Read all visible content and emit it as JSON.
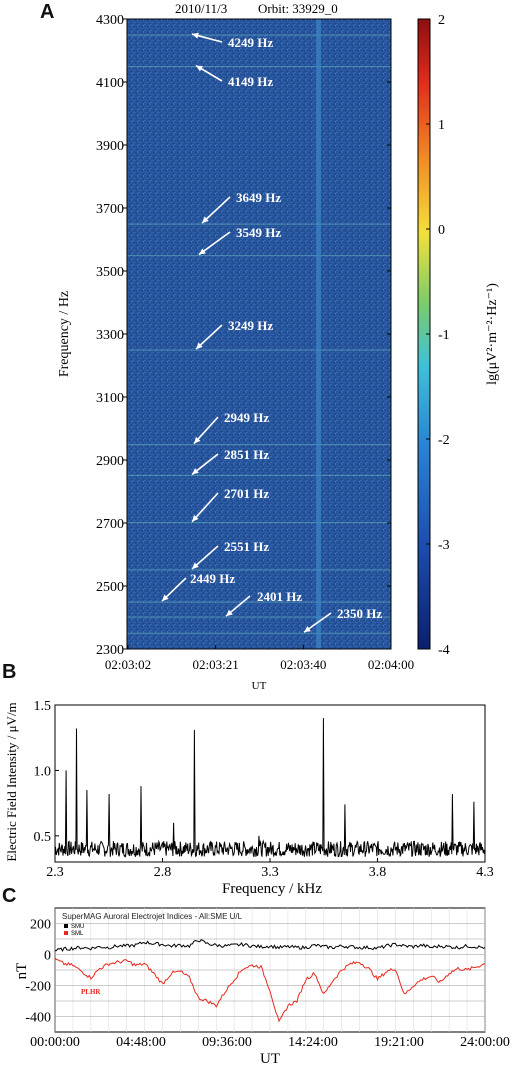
{
  "panel_labels": {
    "a": "A",
    "b": "B",
    "c": "C"
  },
  "chart_data": [
    {
      "type": "heatmap",
      "header_date": "2010/11/3",
      "header_orbit": "Orbit: 33929_0",
      "xlabel": "UT",
      "ylabel": "Frequency / Hz",
      "colorbar_label": "lg(μV²·m⁻²·Hz⁻¹)",
      "x_ticks": [
        "02:03:02",
        "02:03:21",
        "02:03:40",
        "02:04:00"
      ],
      "y_ticks": [
        2300,
        2500,
        2700,
        2900,
        3100,
        3300,
        3500,
        3700,
        3900,
        4100,
        4300
      ],
      "ylim": [
        2300,
        4300
      ],
      "xlim_seconds_after_020302": [
        0,
        58
      ],
      "colorbar_ticks": [
        2,
        1,
        0,
        -1,
        -2,
        -3,
        -4
      ],
      "colorbar_range": [
        -4,
        2
      ],
      "vertical_feature_time": "02:03:41",
      "line_frequencies_hz": [
        4249,
        4149,
        3649,
        3549,
        3249,
        2949,
        2851,
        2701,
        2551,
        2449,
        2401,
        2350
      ],
      "annotations": [
        {
          "label": "4249 Hz",
          "freq": 4249
        },
        {
          "label": "4149 Hz",
          "freq": 4149
        },
        {
          "label": "3649 Hz",
          "freq": 3649
        },
        {
          "label": "3549 Hz",
          "freq": 3549
        },
        {
          "label": "3249 Hz",
          "freq": 3249
        },
        {
          "label": "2949 Hz",
          "freq": 2949
        },
        {
          "label": "2851 Hz",
          "freq": 2851
        },
        {
          "label": "2701 Hz",
          "freq": 2701
        },
        {
          "label": "2551 Hz",
          "freq": 2551
        },
        {
          "label": "2449 Hz",
          "freq": 2449
        },
        {
          "label": "2401 Hz",
          "freq": 2401
        },
        {
          "label": "2350 Hz",
          "freq": 2350
        }
      ]
    },
    {
      "type": "line",
      "xlabel": "Frequency / kHz",
      "ylabel": "Electric Field Intensity / μV/m",
      "xlim": [
        2.3,
        4.3
      ],
      "ylim": [
        0.3,
        1.5
      ],
      "x_ticks": [
        "2.3",
        "2.8",
        "3.3",
        "3.8",
        "4.3"
      ],
      "y_ticks": [
        "0.5",
        "1.0",
        "1.5"
      ],
      "baseline": 0.4,
      "peaks": [
        {
          "x": 2.35,
          "y": 1.0
        },
        {
          "x": 2.401,
          "y": 1.32
        },
        {
          "x": 2.449,
          "y": 0.85
        },
        {
          "x": 2.551,
          "y": 0.82
        },
        {
          "x": 2.701,
          "y": 0.88
        },
        {
          "x": 2.851,
          "y": 0.6
        },
        {
          "x": 2.949,
          "y": 1.31
        },
        {
          "x": 3.249,
          "y": 0.5
        },
        {
          "x": 3.549,
          "y": 1.4
        },
        {
          "x": 3.649,
          "y": 0.74
        },
        {
          "x": 4.149,
          "y": 0.82
        },
        {
          "x": 4.249,
          "y": 0.76
        }
      ]
    },
    {
      "type": "line",
      "title": "SuperMAG Auroral Electrojet Indices - All:SME U/L",
      "xlabel": "UT",
      "ylabel": "nT",
      "ylim": [
        -500,
        300
      ],
      "xlim_hours": [
        0,
        24
      ],
      "x_ticks": [
        "00:00:00",
        "04:48:00",
        "09:36:00",
        "14:24:00",
        "19:21:00",
        "24:00:00"
      ],
      "y_ticks": [
        "200",
        "0",
        "-200",
        "-400"
      ],
      "annotation": "PLHR",
      "series": [
        {
          "name": "SMU",
          "color": "#000000",
          "x": [
            0,
            0.5,
            1,
            1.5,
            2,
            2.5,
            3,
            3.5,
            4,
            4.5,
            5,
            5.5,
            6,
            6.5,
            7,
            7.5,
            8,
            8.5,
            9,
            9.5,
            10,
            10.5,
            11,
            11.5,
            12,
            12.5,
            13,
            13.5,
            14,
            14.5,
            15,
            15.5,
            16,
            16.5,
            17,
            17.5,
            18,
            18.5,
            19,
            19.5,
            20,
            20.5,
            21,
            21.5,
            22,
            22.5,
            23,
            23.5,
            24
          ],
          "y": [
            25,
            35,
            40,
            45,
            40,
            50,
            45,
            55,
            55,
            60,
            80,
            70,
            65,
            55,
            60,
            55,
            95,
            70,
            60,
            55,
            60,
            65,
            55,
            50,
            55,
            45,
            50,
            45,
            45,
            60,
            50,
            45,
            55,
            50,
            45,
            45,
            40,
            55,
            65,
            55,
            50,
            60,
            45,
            55,
            50,
            45,
            55,
            50,
            45
          ]
        },
        {
          "name": "SML",
          "color": "#e8281e",
          "x": [
            0,
            0.5,
            1,
            1.5,
            2,
            2.5,
            3,
            3.5,
            4,
            4.5,
            5,
            5.5,
            6,
            6.5,
            7,
            7.5,
            8,
            8.5,
            9,
            9.5,
            10,
            10.5,
            11,
            11.5,
            12,
            12.5,
            13,
            13.5,
            14,
            14.5,
            15,
            15.5,
            16,
            16.5,
            17,
            17.5,
            18,
            18.5,
            19,
            19.5,
            20,
            20.5,
            21,
            21.5,
            22,
            22.5,
            23,
            23.5,
            24
          ],
          "y": [
            -30,
            -60,
            -70,
            -110,
            -150,
            -90,
            -60,
            -50,
            -40,
            -70,
            -60,
            -120,
            -190,
            -120,
            -110,
            -150,
            -280,
            -300,
            -330,
            -240,
            -160,
            -90,
            -70,
            -80,
            -230,
            -440,
            -330,
            -300,
            -160,
            -120,
            -260,
            -170,
            -100,
            -60,
            -50,
            -90,
            -160,
            -110,
            -90,
            -260,
            -200,
            -160,
            -140,
            -180,
            -120,
            -90,
            -100,
            -80,
            -60
          ]
        }
      ]
    }
  ]
}
